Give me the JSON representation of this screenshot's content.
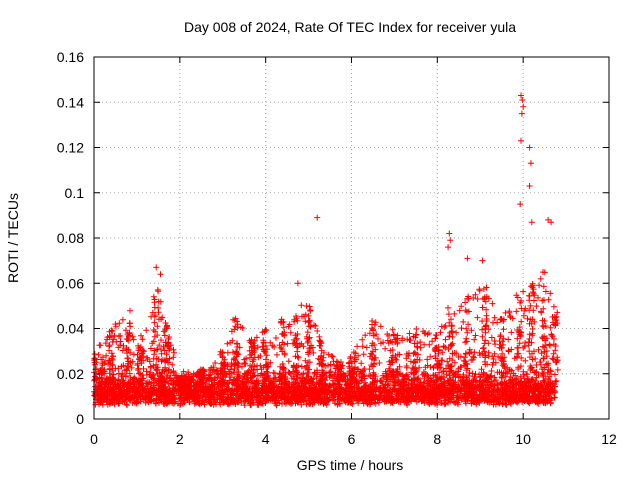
{
  "chart_data": {
    "type": "scatter",
    "title": "Day 008 of 2024, Rate Of TEC Index for receiver yula",
    "xlabel": "GPS time / hours",
    "ylabel": "ROTI / TECUs",
    "xlim": [
      0,
      12
    ],
    "ylim": [
      0,
      0.16
    ],
    "xticks": [
      0,
      2,
      4,
      6,
      8,
      10,
      12
    ],
    "xtick_labels": [
      "0",
      "2",
      "4",
      "6",
      "8",
      "10",
      "12"
    ],
    "yticks": [
      0,
      0.02,
      0.04,
      0.06,
      0.08,
      0.1,
      0.12,
      0.14,
      0.16
    ],
    "ytick_labels": [
      "0",
      "0.02",
      "0.04",
      "0.06",
      "0.08",
      "0.1",
      "0.12",
      "0.14",
      "0.16"
    ],
    "grid": true,
    "marker": "+",
    "color": "#ff0000",
    "data_x_range": [
      0,
      10.75
    ],
    "notable_points": [
      {
        "x": 5.2,
        "y": 0.089
      },
      {
        "x": 9.95,
        "y": 0.143
      },
      {
        "x": 9.98,
        "y": 0.141
      },
      {
        "x": 10.0,
        "y": 0.138
      },
      {
        "x": 9.97,
        "y": 0.135
      },
      {
        "x": 9.95,
        "y": 0.123
      },
      {
        "x": 10.15,
        "y": 0.12
      },
      {
        "x": 10.18,
        "y": 0.113
      },
      {
        "x": 10.15,
        "y": 0.103
      },
      {
        "x": 9.93,
        "y": 0.095
      },
      {
        "x": 10.58,
        "y": 0.088
      },
      {
        "x": 10.65,
        "y": 0.087
      },
      {
        "x": 10.2,
        "y": 0.087
      },
      {
        "x": 8.28,
        "y": 0.082
      },
      {
        "x": 8.3,
        "y": 0.079
      },
      {
        "x": 8.25,
        "y": 0.076
      },
      {
        "x": 9.05,
        "y": 0.07
      },
      {
        "x": 8.7,
        "y": 0.071
      },
      {
        "x": 1.45,
        "y": 0.067
      },
      {
        "x": 1.55,
        "y": 0.064
      },
      {
        "x": 4.75,
        "y": 0.06
      }
    ]
  }
}
